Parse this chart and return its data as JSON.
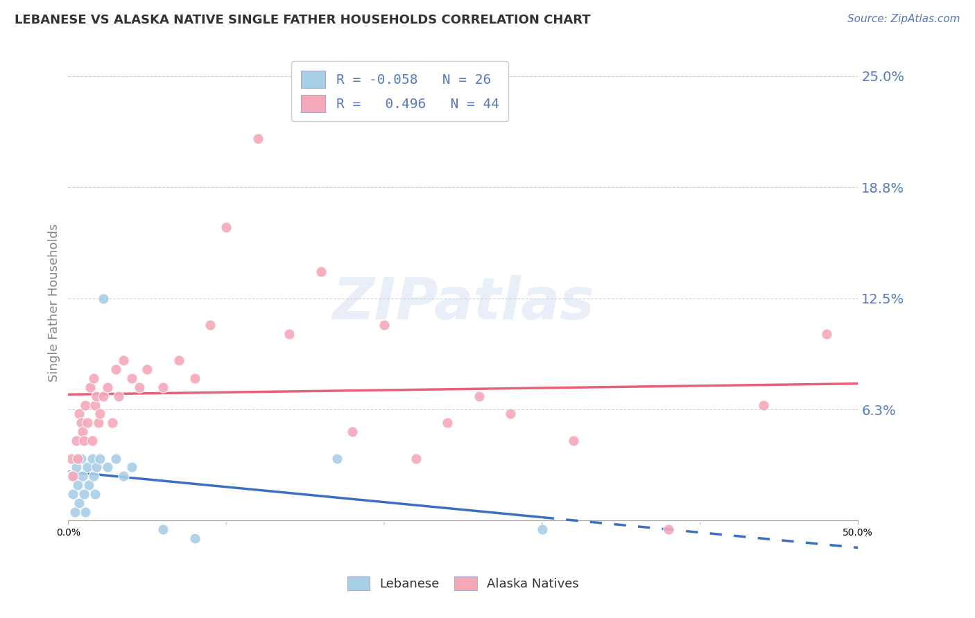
{
  "title": "LEBANESE VS ALASKA NATIVE SINGLE FATHER HOUSEHOLDS CORRELATION CHART",
  "source": "Source: ZipAtlas.com",
  "ylabel": "Single Father Households",
  "xlim": [
    0.0,
    50.0
  ],
  "ylim": [
    -2.0,
    26.5
  ],
  "plot_ymin": 0.0,
  "plot_ymax": 25.0,
  "ytick_vals": [
    0.0,
    6.25,
    12.5,
    18.75,
    25.0
  ],
  "ytick_labels": [
    "",
    "6.3%",
    "12.5%",
    "18.8%",
    "25.0%"
  ],
  "xtick_vals": [
    0.0,
    50.0
  ],
  "xtick_labels": [
    "0.0%",
    "50.0%"
  ],
  "legend_R1": "-0.058",
  "legend_N1": "26",
  "legend_R2": "0.496",
  "legend_N2": "44",
  "color_lebanese": "#a8cfe8",
  "color_alaska": "#f5a8b8",
  "color_line_lebanese": "#3a6fc4",
  "color_line_alaska": "#e8607a",
  "color_text": "#5577cc",
  "color_grid": "#cccccc",
  "watermark_color": "#c8d8f0",
  "lebanese_x": [
    0.2,
    0.3,
    0.4,
    0.5,
    0.6,
    0.7,
    0.8,
    0.9,
    1.0,
    1.1,
    1.2,
    1.3,
    1.5,
    1.6,
    1.7,
    1.8,
    2.0,
    2.2,
    2.5,
    3.0,
    3.5,
    4.0,
    6.0,
    8.0,
    17.0,
    30.0
  ],
  "lebanese_y": [
    2.5,
    1.5,
    0.5,
    3.0,
    2.0,
    1.0,
    3.5,
    2.5,
    1.5,
    0.5,
    3.0,
    2.0,
    3.5,
    2.5,
    1.5,
    3.0,
    3.5,
    12.5,
    3.0,
    3.5,
    2.5,
    3.0,
    -0.5,
    -1.0,
    3.5,
    -0.5
  ],
  "alaska_x": [
    0.2,
    0.3,
    0.5,
    0.6,
    0.7,
    0.8,
    0.9,
    1.0,
    1.1,
    1.2,
    1.4,
    1.5,
    1.6,
    1.7,
    1.8,
    1.9,
    2.0,
    2.2,
    2.5,
    2.8,
    3.0,
    3.2,
    3.5,
    4.0,
    4.5,
    5.0,
    6.0,
    7.0,
    8.0,
    9.0,
    10.0,
    12.0,
    14.0,
    16.0,
    18.0,
    20.0,
    22.0,
    24.0,
    26.0,
    28.0,
    32.0,
    38.0,
    44.0,
    48.0
  ],
  "alaska_y": [
    3.5,
    2.5,
    4.5,
    3.5,
    6.0,
    5.5,
    5.0,
    4.5,
    6.5,
    5.5,
    7.5,
    4.5,
    8.0,
    6.5,
    7.0,
    5.5,
    6.0,
    7.0,
    7.5,
    5.5,
    8.5,
    7.0,
    9.0,
    8.0,
    7.5,
    8.5,
    7.5,
    9.0,
    8.0,
    11.0,
    16.5,
    21.5,
    10.5,
    14.0,
    5.0,
    11.0,
    3.5,
    5.5,
    7.0,
    6.0,
    4.5,
    -0.5,
    6.5,
    10.5
  ],
  "leb_line_start_x": 0.0,
  "leb_line_end_solid_x": 30.0,
  "leb_line_end_x": 50.0,
  "ak_line_start_x": 0.0,
  "ak_line_end_x": 50.0
}
